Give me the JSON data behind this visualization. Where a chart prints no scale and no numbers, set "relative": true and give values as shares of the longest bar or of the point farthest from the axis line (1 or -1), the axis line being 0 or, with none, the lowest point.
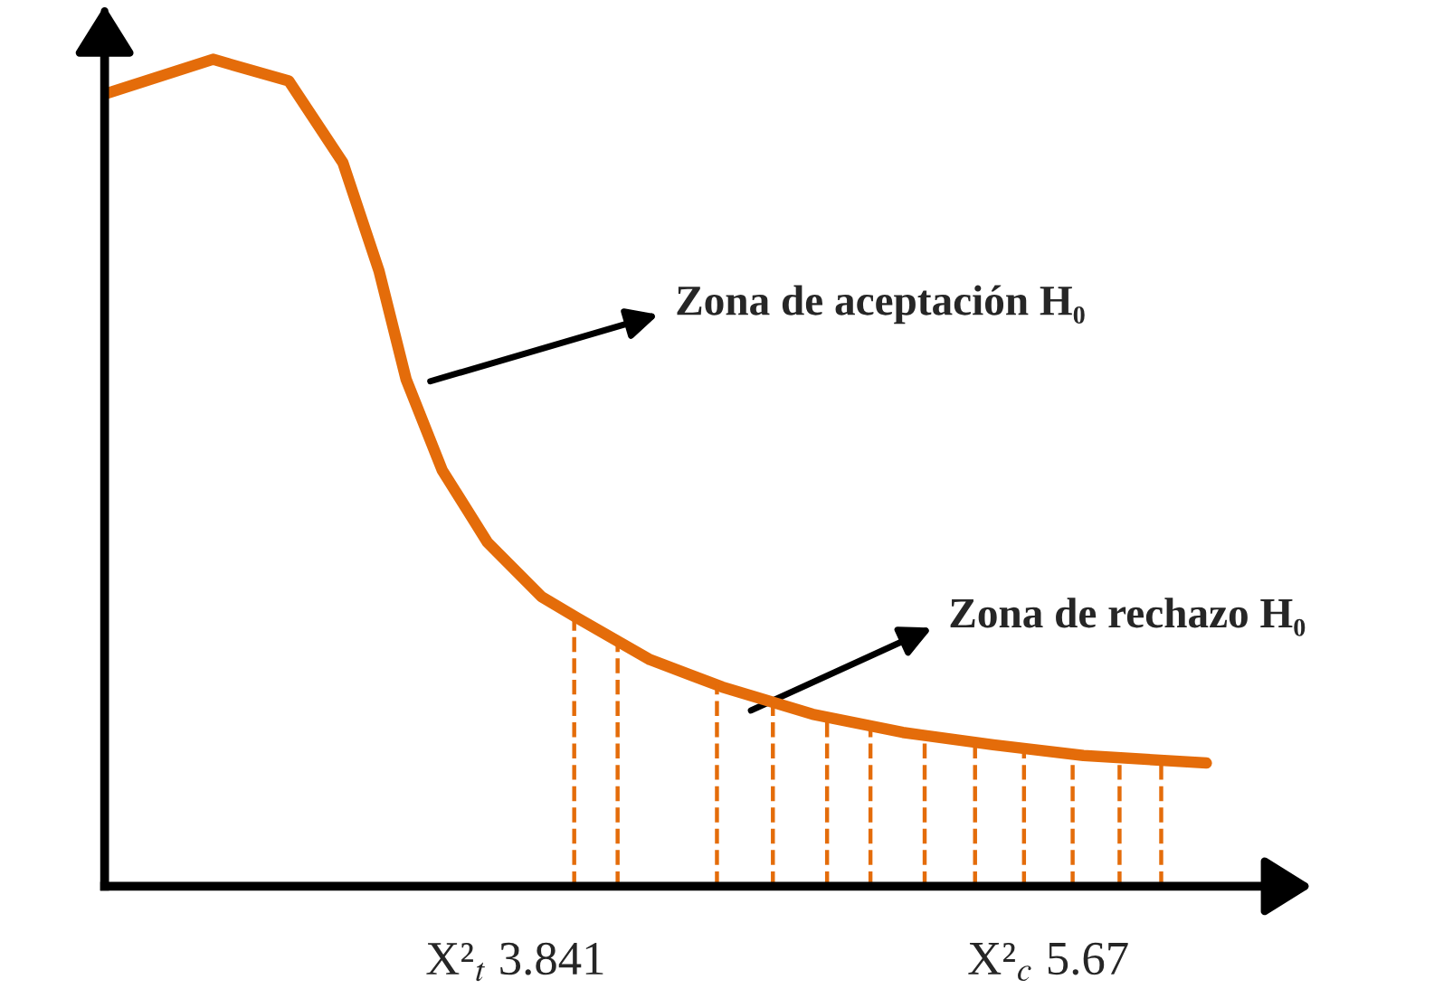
{
  "chart_data": {
    "type": "line",
    "relative": true,
    "color": "#e46c0a",
    "x": [
      2.43,
      2.802,
      3.062,
      3.248,
      3.372,
      3.465,
      3.589,
      3.744,
      3.93,
      4.054,
      4.302,
      4.55,
      4.86,
      5.17,
      5.48,
      5.79,
      6.212
    ],
    "values": [
      0.958,
      1.0,
      0.974,
      0.875,
      0.744,
      0.613,
      0.503,
      0.416,
      0.35,
      0.324,
      0.274,
      0.241,
      0.208,
      0.186,
      0.171,
      0.158,
      0.149
    ],
    "xlim": [
      2.43,
      6.51
    ],
    "xticks": [
      {
        "value": 3.841,
        "label": "X²$_{t}$ 3.841"
      },
      {
        "value": 5.67,
        "label": "X²$_{c}$ 5.67"
      }
    ],
    "ref_lines": [
      {
        "axis": "x",
        "value": 4.042,
        "color": "#e46c0a",
        "line_style": "dashed"
      },
      {
        "axis": "x",
        "value": 4.191,
        "color": "#e46c0a",
        "line_style": "dashed"
      },
      {
        "axis": "x",
        "value": 4.532,
        "color": "#e46c0a",
        "line_style": "dashed"
      },
      {
        "axis": "x",
        "value": 4.724,
        "color": "#e46c0a",
        "line_style": "dashed"
      },
      {
        "axis": "x",
        "value": 4.91,
        "color": "#e46c0a",
        "line_style": "dashed"
      },
      {
        "axis": "x",
        "value": 5.059,
        "color": "#e46c0a",
        "line_style": "dashed"
      },
      {
        "axis": "x",
        "value": 5.245,
        "color": "#e46c0a",
        "line_style": "dashed"
      },
      {
        "axis": "x",
        "value": 5.418,
        "color": "#e46c0a",
        "line_style": "dashed"
      },
      {
        "axis": "x",
        "value": 5.586,
        "color": "#e46c0a",
        "line_style": "dashed"
      },
      {
        "axis": "x",
        "value": 5.753,
        "color": "#e46c0a",
        "line_style": "dashed"
      },
      {
        "axis": "x",
        "value": 5.914,
        "color": "#e46c0a",
        "line_style": "dashed"
      },
      {
        "axis": "x",
        "value": 6.057,
        "color": "#e46c0a",
        "line_style": "dashed"
      }
    ],
    "annotations": [
      "Zona de aceptación H₀",
      "Zona de rechazo H₀"
    ],
    "grid": false,
    "legend": false,
    "marker": "none",
    "line_style": "solid"
  }
}
